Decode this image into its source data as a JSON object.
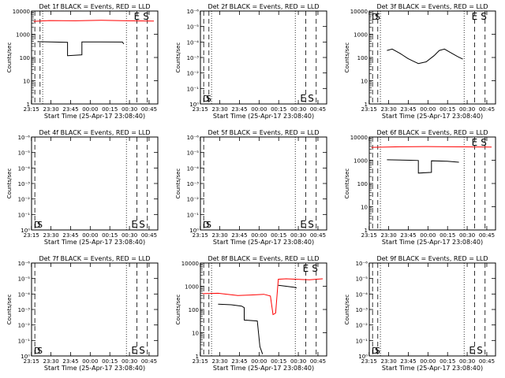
{
  "figure": {
    "xlabel": "Start Time (25-Apr-17 23:08:40)",
    "ylabel": "Counts/sec",
    "xticks": [
      "23:15",
      "23:30",
      "23:45",
      "00:00",
      "00:15",
      "00:30",
      "00:45"
    ],
    "series_colors": {
      "events": "#000000",
      "lld": "#ff0000"
    }
  },
  "chart_data": [
    {
      "type": "line",
      "title": "Det 1f BLACK = Events, RED = LLD",
      "scale": "log",
      "yticks": [
        "1",
        "10",
        "100",
        "1000",
        "10000"
      ],
      "ylim": [
        1,
        10000
      ],
      "xlim_min": [
        6.5,
        103
      ],
      "dotted_x": [
        15,
        79
      ],
      "dashed_x": [
        9,
        13,
        87,
        95
      ],
      "marks": [
        {
          "text": "E",
          "x": 0
        },
        {
          "text": "S",
          "x": 0
        }
      ],
      "mark_style": "top",
      "series": [
        {
          "name": "events",
          "segments": [
            [
              [
                11,
                480
              ],
              [
                34,
                450
              ],
              [
                34,
                120
              ],
              [
                45,
                130
              ],
              [
                45,
                470
              ],
              [
                76,
                460
              ],
              [
                77,
                380
              ]
            ]
          ]
        },
        {
          "name": "lld",
          "segments": [
            [
              [
                8,
                3600
              ],
              [
                20,
                3900
              ],
              [
                40,
                3800
              ],
              [
                60,
                4000
              ],
              [
                80,
                3800
              ],
              [
                100,
                3700
              ]
            ]
          ]
        }
      ]
    },
    {
      "type": "line",
      "title": "Det 2f BLACK = Events, RED = LLD",
      "scale": "exp",
      "yticks": [
        "10⁰",
        "10⁻¹",
        "10⁻²",
        "10⁻³",
        "10⁻⁴",
        "10⁻⁵",
        "10⁻⁶"
      ],
      "ylim": [
        0,
        6
      ],
      "xlim_min": [
        6.5,
        103
      ],
      "dotted_x": [
        15,
        79
      ],
      "dashed_x": [
        9,
        13,
        87,
        95
      ],
      "marks": [
        {
          "text": "E",
          "x": 85
        },
        {
          "text": "S",
          "x": 91
        }
      ],
      "mark_style": "bottom",
      "corner_marks": [
        "D",
        "S"
      ],
      "series": []
    },
    {
      "type": "line",
      "title": "Det 3f BLACK = Events, RED = LLD",
      "scale": "log",
      "yticks": [
        "1",
        "10",
        "100",
        "1000",
        "10000"
      ],
      "ylim": [
        1,
        10000
      ],
      "xlim_min": [
        6.5,
        103
      ],
      "dotted_x": [
        15,
        79
      ],
      "dashed_x": [
        9,
        13,
        87,
        95
      ],
      "marks": [
        {
          "text": "E",
          "x": 87
        },
        {
          "text": "S",
          "x": 94
        }
      ],
      "mark_style": "top",
      "corner_marks": [
        "D",
        "S"
      ],
      "series": [
        {
          "name": "events",
          "segments": [
            [
              [
                20,
                200
              ],
              [
                24,
                230
              ],
              [
                30,
                150
              ],
              [
                36,
                90
              ],
              [
                40,
                70
              ],
              [
                44,
                55
              ],
              [
                50,
                65
              ],
              [
                56,
                120
              ],
              [
                60,
                200
              ],
              [
                64,
                230
              ],
              [
                68,
                170
              ],
              [
                74,
                110
              ],
              [
                78,
                85
              ]
            ]
          ]
        }
      ]
    },
    {
      "type": "line",
      "title": "Det 4f BLACK = Events, RED = LLD",
      "scale": "exp",
      "yticks": [
        "10⁰",
        "10⁻¹",
        "10⁻²",
        "10⁻³",
        "10⁻⁴",
        "10⁻⁵",
        "10⁻⁶"
      ],
      "ylim": [
        0,
        6
      ],
      "xlim_min": [
        6.5,
        103
      ],
      "dotted_x": [
        79
      ],
      "dashed_x": [
        9,
        87,
        95
      ],
      "marks": [
        {
          "text": "E",
          "x": 85
        },
        {
          "text": "S",
          "x": 91
        }
      ],
      "mark_style": "bottom",
      "corner_marks": [
        "D",
        "S"
      ],
      "series": []
    },
    {
      "type": "line",
      "title": "Det 5f BLACK = Events, RED = LLD",
      "scale": "exp",
      "yticks": [
        "10⁰",
        "10⁻¹",
        "10⁻²",
        "10⁻³",
        "10⁻⁴",
        "10⁻⁵",
        "10⁻⁶"
      ],
      "ylim": [
        0,
        6
      ],
      "xlim_min": [
        6.5,
        103
      ],
      "dotted_x": [
        79
      ],
      "dashed_x": [
        9,
        87,
        95
      ],
      "marks": [
        {
          "text": "E",
          "x": 85
        },
        {
          "text": "S",
          "x": 91
        }
      ],
      "mark_style": "bottom",
      "corner_marks": [
        "D",
        "S"
      ],
      "series": []
    },
    {
      "type": "line",
      "title": "Det 6f BLACK = Events, RED = LLD",
      "scale": "log",
      "yticks": [
        "1",
        "10",
        "100",
        "1000",
        "10000"
      ],
      "ylim": [
        1,
        10000
      ],
      "xlim_min": [
        6.5,
        103
      ],
      "dotted_x": [
        15,
        79
      ],
      "dashed_x": [
        9,
        13,
        87,
        95
      ],
      "marks": [
        {
          "text": "E",
          "x": 87
        },
        {
          "text": "S",
          "x": 94
        }
      ],
      "mark_style": "top",
      "series": [
        {
          "name": "events",
          "segments": [
            [
              [
                20,
                1050
              ],
              [
                38,
                1000
              ],
              [
                44,
                980
              ],
              [
                44,
                280
              ],
              [
                54,
                300
              ],
              [
                54,
                950
              ],
              [
                66,
                900
              ],
              [
                75,
                820
              ]
            ]
          ]
        },
        {
          "name": "lld",
          "segments": [
            [
              [
                8,
                3600
              ],
              [
                30,
                3800
              ],
              [
                50,
                3900
              ],
              [
                70,
                3800
              ],
              [
                100,
                3700
              ]
            ]
          ]
        }
      ]
    },
    {
      "type": "line",
      "title": "Det 7f BLACK = Events, RED = LLD",
      "scale": "exp",
      "yticks": [
        "10⁰",
        "10⁻¹",
        "10⁻²",
        "10⁻³",
        "10⁻⁴",
        "10⁻⁵",
        "10⁻⁶"
      ],
      "ylim": [
        0,
        6
      ],
      "xlim_min": [
        6.5,
        103
      ],
      "dotted_x": [
        79
      ],
      "dashed_x": [
        9,
        87,
        95
      ],
      "marks": [
        {
          "text": "E",
          "x": 85
        },
        {
          "text": "S",
          "x": 91
        }
      ],
      "mark_style": "bottom",
      "corner_marks": [
        "D",
        "S"
      ],
      "series": []
    },
    {
      "type": "line",
      "title": "Det 8f BLACK = Events, RED = LLD",
      "scale": "log",
      "yticks": [
        "1",
        "10",
        "100",
        "1000",
        "10000"
      ],
      "ylim": [
        1,
        10000
      ],
      "xlim_min": [
        6.5,
        103
      ],
      "dotted_x": [
        15,
        79
      ],
      "dashed_x": [
        9,
        13,
        87,
        95
      ],
      "marks": [
        {
          "text": "E",
          "x": 0
        },
        {
          "text": "S",
          "x": 0
        }
      ],
      "mark_style": "top",
      "series": [
        {
          "name": "events",
          "segments": [
            [
              [
                20,
                170
              ],
              [
                30,
                160
              ],
              [
                38,
                140
              ],
              [
                40,
                120
              ],
              [
                40,
                35
              ],
              [
                50,
                32
              ],
              [
                52,
                2.5
              ],
              [
                54,
                1.2
              ]
            ],
            [
              [
                66,
                1100
              ],
              [
                72,
                1000
              ],
              [
                78,
                900
              ],
              [
                80,
                850
              ]
            ]
          ]
        },
        {
          "name": "lld",
          "segments": [
            [
              [
                8,
                480
              ],
              [
                20,
                500
              ],
              [
                35,
                400
              ],
              [
                45,
                420
              ],
              [
                55,
                450
              ],
              [
                60,
                380
              ],
              [
                62,
                60
              ],
              [
                64,
                70
              ],
              [
                66,
                2000
              ],
              [
                72,
                2100
              ],
              [
                80,
                2000
              ],
              [
                90,
                1900
              ],
              [
                100,
                2100
              ]
            ]
          ]
        }
      ]
    },
    {
      "type": "line",
      "title": "Det 9f BLACK = Events, RED = LLD",
      "scale": "exp",
      "yticks": [
        "10⁰",
        "10⁻¹",
        "10⁻²",
        "10⁻³",
        "10⁻⁴",
        "10⁻⁵",
        "10⁻⁶"
      ],
      "ylim": [
        0,
        6
      ],
      "xlim_min": [
        6.5,
        103
      ],
      "dotted_x": [
        15,
        79
      ],
      "dashed_x": [
        9,
        13,
        87,
        95
      ],
      "marks": [
        {
          "text": "E",
          "x": 85
        },
        {
          "text": "S",
          "x": 91
        }
      ],
      "mark_style": "bottom",
      "corner_marks": [
        "D",
        "S"
      ],
      "series": []
    }
  ]
}
